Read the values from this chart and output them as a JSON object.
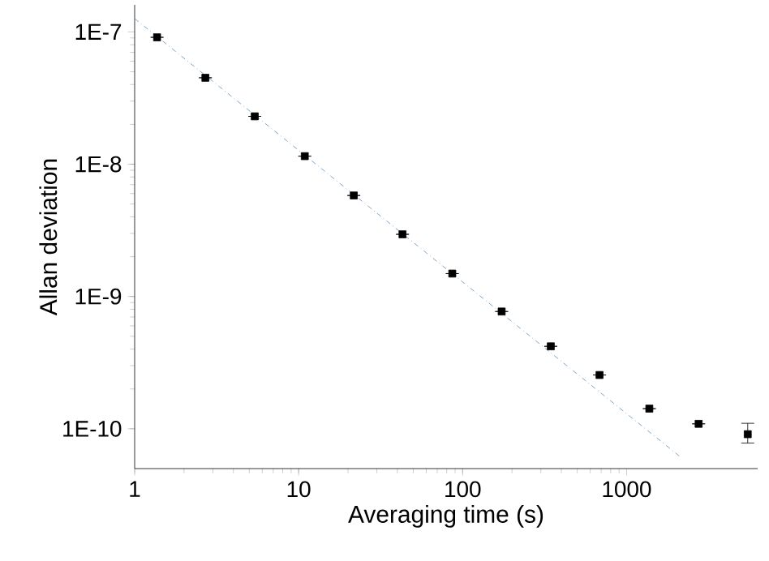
{
  "chart_data": {
    "type": "scatter",
    "xlabel": "Averaging time (s)",
    "ylabel": "Allan deviation",
    "log": "xy",
    "grid": false,
    "xlim": [
      1,
      6300
    ],
    "ylim": [
      5e-11,
      1.6e-07
    ],
    "xticks": [
      1,
      10,
      100,
      1000
    ],
    "yticks": [
      {
        "value": 1e-10,
        "label": "1E-10"
      },
      {
        "value": 1e-09,
        "label": "1E-9"
      },
      {
        "value": 1e-08,
        "label": "1E-8"
      },
      {
        "value": 1e-07,
        "label": "1E-7"
      }
    ],
    "series": [
      {
        "color": "#000000",
        "marker": "square",
        "x": [
          1.37,
          2.7,
          5.4,
          10.9,
          21.7,
          43,
          86.5,
          173,
          345,
          684,
          1376,
          2750,
          5480
        ],
        "values": [
          9.1e-08,
          4.5e-08,
          2.3e-08,
          1.15e-08,
          5.8e-09,
          2.95e-09,
          1.49e-09,
          7.7e-10,
          4.2e-10,
          2.55e-10,
          1.42e-10,
          1.09e-10,
          9.1e-11
        ],
        "errors": [
          null,
          null,
          null,
          null,
          null,
          null,
          null,
          null,
          null,
          null,
          null,
          null,
          [
            7.8e-11,
            1.1e-10
          ]
        ]
      },
      {
        "type": "line",
        "color": "#5b8db8",
        "marker": "none",
        "line_style": "dashdot",
        "x": [
          1,
          2140
        ],
        "values": [
          1.26e-07,
          6.1e-11
        ]
      }
    ]
  }
}
